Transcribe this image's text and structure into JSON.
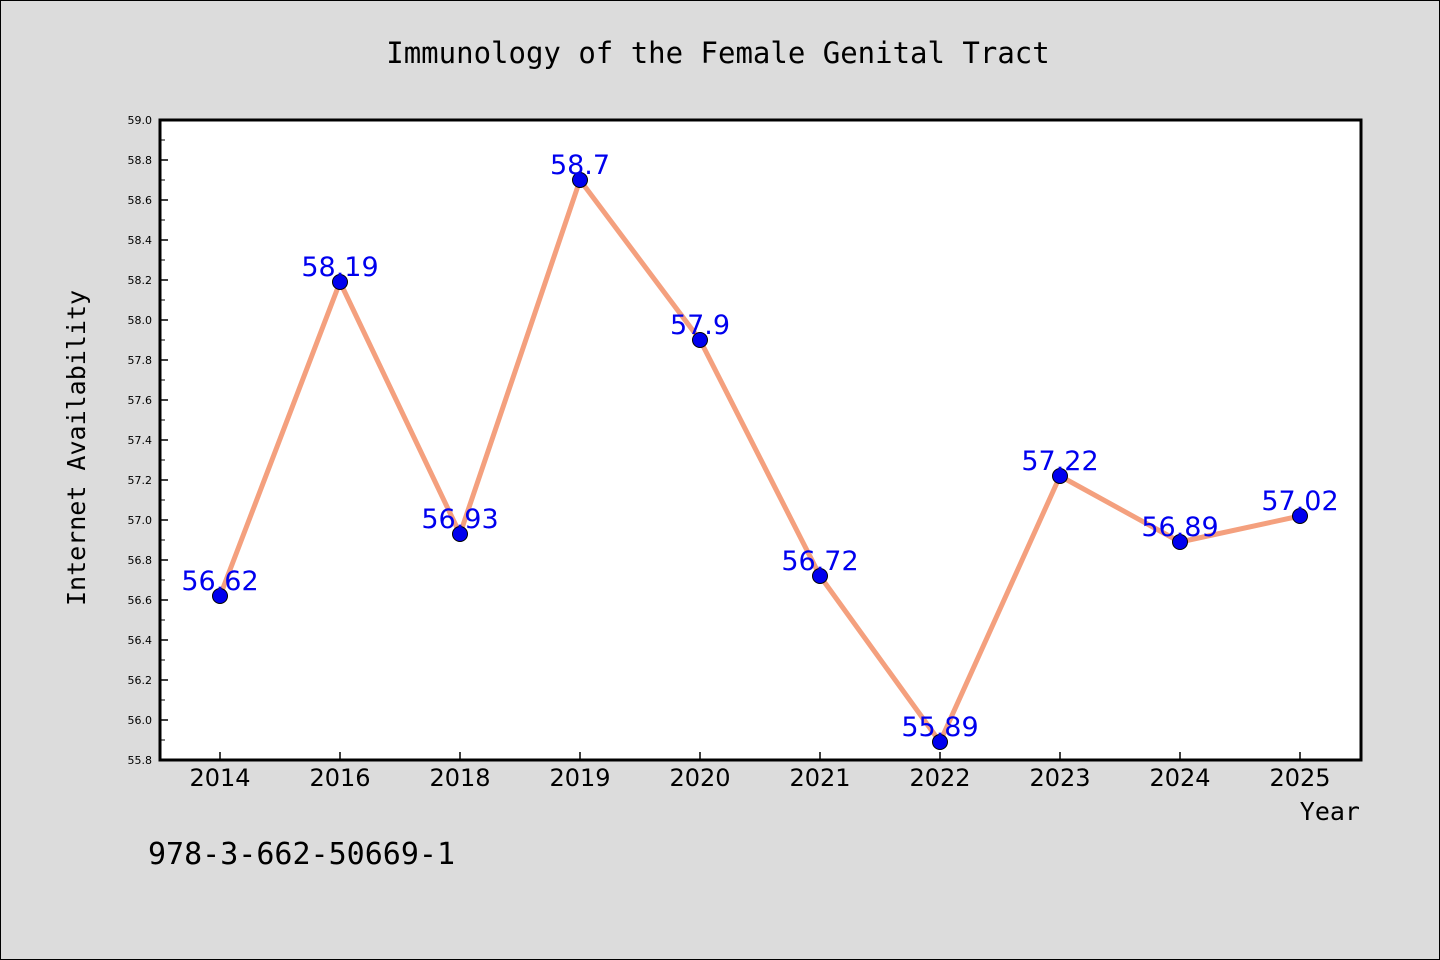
{
  "chart_data": {
    "type": "line",
    "title": "Immunology of the Female Genital Tract",
    "xlabel": "Year",
    "ylabel": "Internet Availability",
    "categories": [
      "2014",
      "2016",
      "2018",
      "2019",
      "2020",
      "2021",
      "2022",
      "2023",
      "2024",
      "2025"
    ],
    "series": [
      {
        "values": [
          56.62,
          58.19,
          56.93,
          58.7,
          57.9,
          56.72,
          55.89,
          57.22,
          56.89,
          57.02
        ],
        "point_labels": [
          "56.62",
          "58.19",
          "56.93",
          "58.7",
          "57.9",
          "56.72",
          "55.89",
          "57.22",
          "56.89",
          "57.02"
        ]
      }
    ],
    "ylim": [
      55.8,
      59.0
    ],
    "yticks": [
      "55.8",
      "56.0",
      "56.2",
      "56.4",
      "56.6",
      "56.8",
      "57.0",
      "57.2",
      "57.4",
      "57.6",
      "57.8",
      "58.0",
      "58.2",
      "58.4",
      "58.6",
      "58.8",
      "59.0"
    ],
    "grid": false,
    "legend": "none",
    "colors": {
      "line": "#f4a07e",
      "marker": "#0000ee",
      "label": "#0000ee",
      "plot_bg": "#ffffff",
      "page_bg": "#dcdcdc"
    }
  },
  "annotation": "978-3-662-50669-1"
}
